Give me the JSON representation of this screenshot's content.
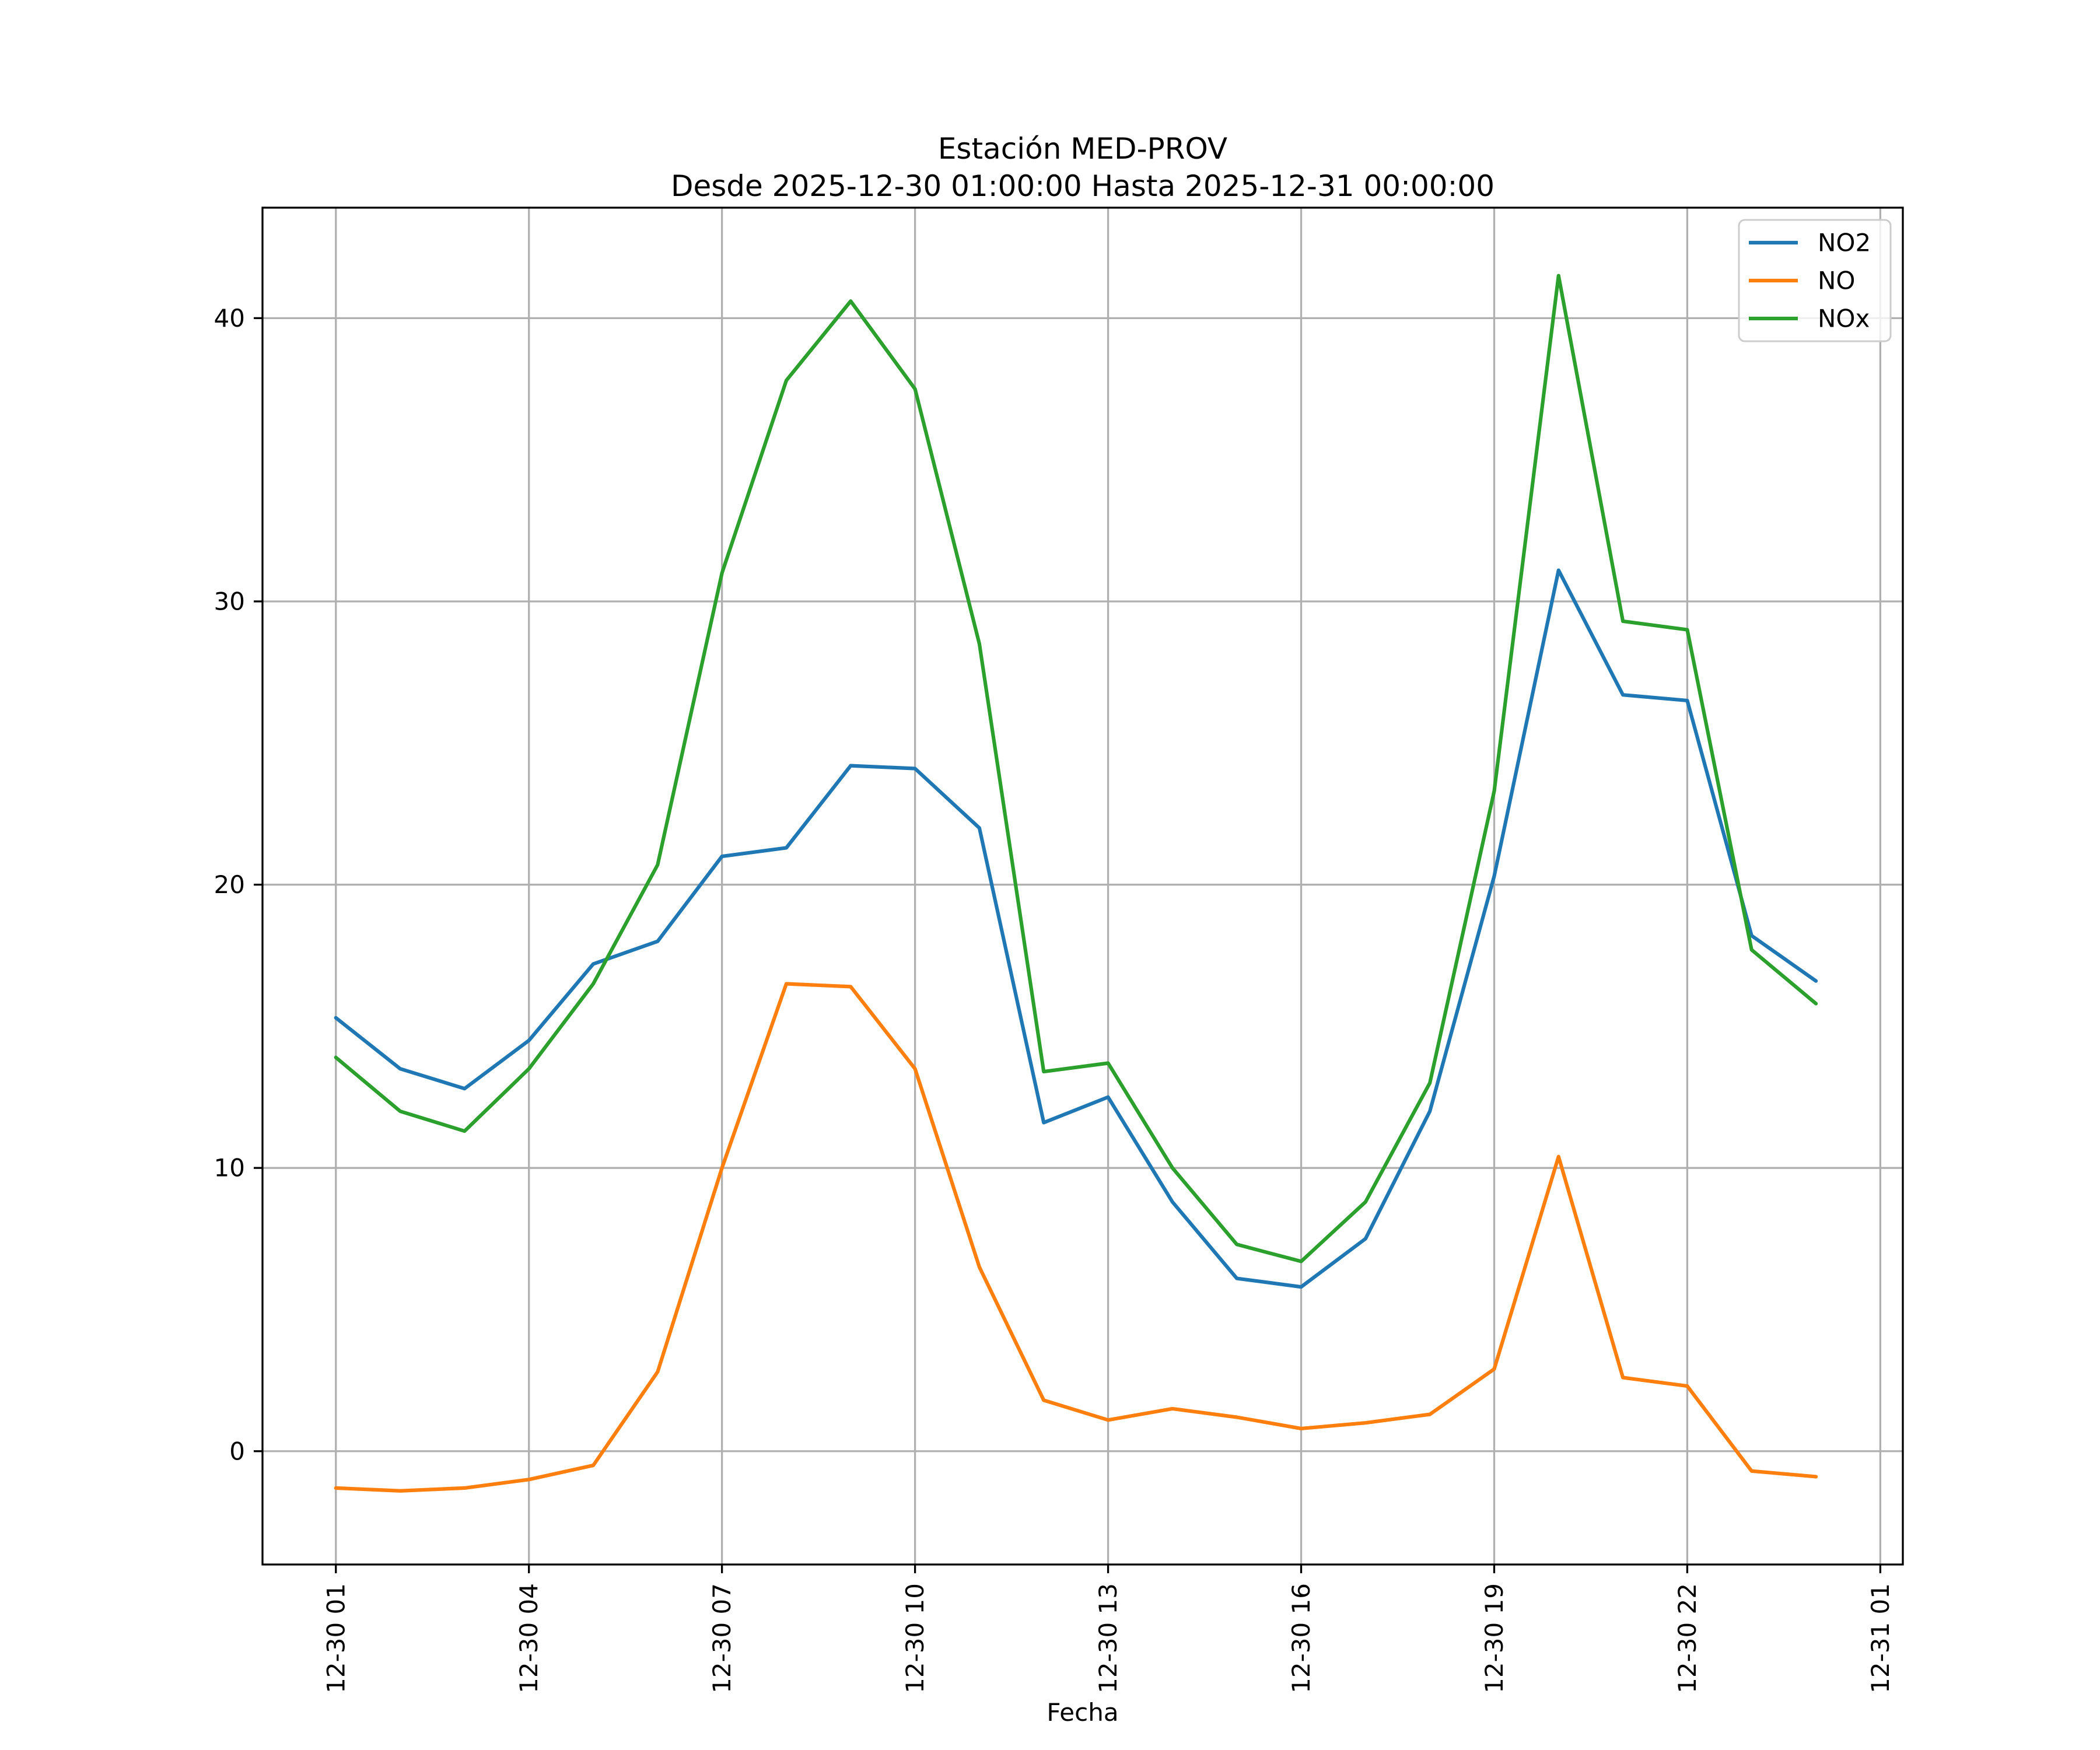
{
  "chart_data": {
    "type": "line",
    "title": "Estación MED-PROV",
    "subtitle": "Desde 2025-12-30 01:00:00 Hasta 2025-12-31 00:00:00",
    "xlabel": "Fecha",
    "x_unit": "hour-of-period",
    "x": [
      1,
      2,
      3,
      4,
      5,
      6,
      7,
      8,
      9,
      10,
      11,
      12,
      13,
      14,
      15,
      16,
      17,
      18,
      19,
      20,
      21,
      22,
      23,
      24
    ],
    "x_ticks": [
      1,
      4,
      7,
      10,
      13,
      16,
      19,
      22,
      25
    ],
    "x_tick_labels": [
      "12-30 01",
      "12-30 04",
      "12-30 07",
      "12-30 10",
      "12-30 13",
      "12-30 16",
      "12-30 19",
      "12-30 22",
      "12-31 01"
    ],
    "y_ticks": [
      0,
      10,
      20,
      30,
      40
    ],
    "y_tick_labels": [
      "0",
      "10",
      "20",
      "30",
      "40"
    ],
    "xlim": [
      -0.14,
      25.35
    ],
    "ylim": [
      -4.0,
      43.9
    ],
    "grid": true,
    "grid_color": "#b0b0b0",
    "legend": {
      "position": "upper right",
      "entries": [
        "NO2",
        "NO",
        "NOx"
      ]
    },
    "series": [
      {
        "name": "NO2",
        "color": "#1f77b4",
        "values": [
          15.3,
          13.5,
          12.8,
          14.5,
          17.2,
          18.0,
          21.0,
          21.3,
          24.2,
          24.1,
          22.0,
          11.6,
          12.5,
          8.8,
          6.1,
          5.8,
          7.5,
          12.0,
          20.3,
          31.1,
          26.7,
          26.5,
          18.2,
          16.6
        ]
      },
      {
        "name": "NO",
        "color": "#ff7f0e",
        "values": [
          -1.3,
          -1.4,
          -1.3,
          -1.0,
          -0.5,
          2.8,
          10.0,
          16.5,
          16.4,
          13.5,
          6.5,
          1.8,
          1.1,
          1.5,
          1.2,
          0.8,
          1.0,
          1.3,
          2.9,
          10.4,
          2.6,
          2.3,
          -0.7,
          -0.9
        ]
      },
      {
        "name": "NOx",
        "color": "#2ca02c",
        "values": [
          13.9,
          12.0,
          11.3,
          13.5,
          16.5,
          20.7,
          31.0,
          37.8,
          40.6,
          37.5,
          28.5,
          13.4,
          13.7,
          10.0,
          7.3,
          6.7,
          8.8,
          13.0,
          23.3,
          41.5,
          29.3,
          29.0,
          17.7,
          15.8
        ]
      }
    ]
  }
}
